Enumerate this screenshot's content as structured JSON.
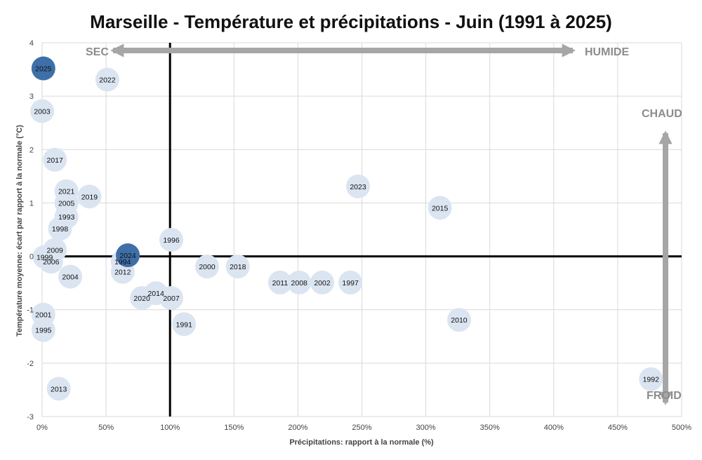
{
  "chart_data": {
    "type": "scatter",
    "title": "Marseille - Température et précipitations - Juin (1991 à 2025)",
    "xlabel": "Précipitations: rapport à la normale (%)",
    "ylabel": "Température moyenne: écart par rapport à la normale (°C)",
    "xlim": [
      0,
      500
    ],
    "ylim": [
      -3,
      4
    ],
    "x_ticks": [
      "0%",
      "50%",
      "100%",
      "150%",
      "200%",
      "250%",
      "300%",
      "350%",
      "400%",
      "450%",
      "500%"
    ],
    "y_ticks": [
      "-3",
      "-2",
      "-1",
      "0",
      "1",
      "2",
      "3",
      "4"
    ],
    "grid": true,
    "reference_lines": {
      "x": 100,
      "y": 0
    },
    "colors": {
      "point": "#dbe5f1",
      "highlight": "#3e6fa8",
      "grid": "#d9d9d9",
      "arrow": "#a6a6a6"
    },
    "annotations": {
      "dry": "SEC",
      "wet": "HUMIDE",
      "hot": "CHAUD",
      "cold": "FROID"
    },
    "points": [
      {
        "year": "2025",
        "x": 1,
        "y": 3.52,
        "highlight": true
      },
      {
        "year": "2022",
        "x": 51,
        "y": 3.31
      },
      {
        "year": "2003",
        "x": 0,
        "y": 2.72
      },
      {
        "year": "2017",
        "x": 10,
        "y": 1.81
      },
      {
        "year": "2021",
        "x": 19,
        "y": 1.22
      },
      {
        "year": "2019",
        "x": 37,
        "y": 1.12
      },
      {
        "year": "2005",
        "x": 19,
        "y": 1.0
      },
      {
        "year": "1993",
        "x": 19,
        "y": 0.74
      },
      {
        "year": "1998",
        "x": 14,
        "y": 0.52
      },
      {
        "year": "2009",
        "x": 10,
        "y": 0.12
      },
      {
        "year": "1999",
        "x": 2,
        "y": -0.01
      },
      {
        "year": "2006",
        "x": 7,
        "y": -0.1
      },
      {
        "year": "2024",
        "x": 67,
        "y": 0.02,
        "highlight": true
      },
      {
        "year": "1994",
        "x": 63,
        "y": -0.1
      },
      {
        "year": "2012",
        "x": 63,
        "y": -0.29
      },
      {
        "year": "2004",
        "x": 22,
        "y": -0.38
      },
      {
        "year": "1996",
        "x": 101,
        "y": 0.31
      },
      {
        "year": "2000",
        "x": 129,
        "y": -0.19
      },
      {
        "year": "2018",
        "x": 153,
        "y": -0.19
      },
      {
        "year": "2014",
        "x": 89,
        "y": -0.69
      },
      {
        "year": "2020",
        "x": 78,
        "y": -0.78
      },
      {
        "year": "2007",
        "x": 101,
        "y": -0.78
      },
      {
        "year": "1991",
        "x": 111,
        "y": -1.27
      },
      {
        "year": "2011",
        "x": 186,
        "y": -0.49
      },
      {
        "year": "2008",
        "x": 201,
        "y": -0.49
      },
      {
        "year": "2002",
        "x": 219,
        "y": -0.49
      },
      {
        "year": "1997",
        "x": 241,
        "y": -0.49
      },
      {
        "year": "2023",
        "x": 247,
        "y": 1.31
      },
      {
        "year": "2015",
        "x": 311,
        "y": 0.91
      },
      {
        "year": "2010",
        "x": 326,
        "y": -1.19
      },
      {
        "year": "2001",
        "x": 1,
        "y": -1.09
      },
      {
        "year": "1995",
        "x": 1,
        "y": -1.38
      },
      {
        "year": "2013",
        "x": 13,
        "y": -2.48
      },
      {
        "year": "1992",
        "x": 476,
        "y": -2.3
      }
    ]
  }
}
